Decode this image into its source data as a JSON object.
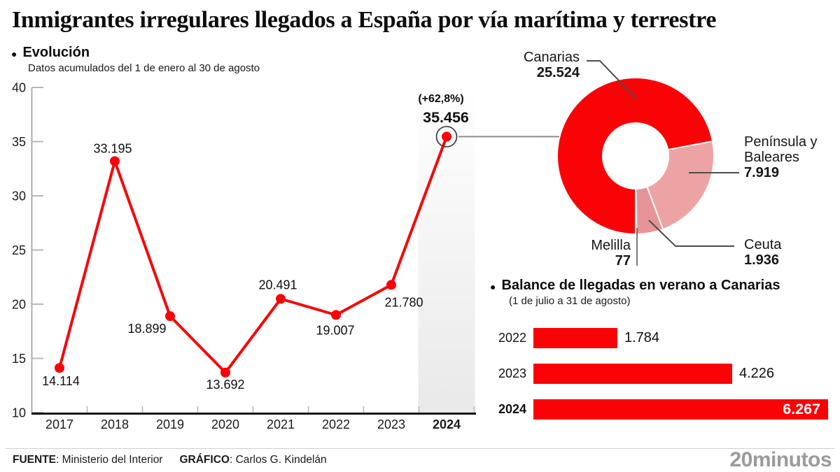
{
  "title": "Inmigrantes irregulares llegados a España por vía marítima y terrestre",
  "icons": {
    "bullet": "●"
  },
  "colors": {
    "red": "#fa0307",
    "pink_peninsula": "#eda3a4",
    "pink_ceuta": "#e69497",
    "pink_melilla": "#d8888a",
    "band_gray": "#e9e9e9",
    "logo_gray": "#9b9b9b",
    "leader_gray": "#4d4d4d"
  },
  "chart_data": [
    {
      "type": "line",
      "title": "Evolución",
      "subtitle": "Datos acumulados del 1 de enero al 30 de agosto",
      "x": [
        "2017",
        "2018",
        "2019",
        "2020",
        "2021",
        "2022",
        "2023",
        "2024"
      ],
      "values": [
        14114,
        33195,
        18899,
        13692,
        20491,
        19007,
        21780,
        35456
      ],
      "labels": [
        "14.114",
        "33.195",
        "18.899",
        "13.692",
        "20.491",
        "19.007",
        "21.780",
        "35.456"
      ],
      "highlight_year": "2024",
      "highlight_annotation": "(+62,8%)",
      "highlight_value_label": "35.456",
      "ylim": [
        10000,
        40000
      ],
      "yticks": [
        40,
        35,
        30,
        25,
        20,
        15,
        10
      ],
      "ytick_labels": [
        "40",
        "35",
        "30",
        "25",
        "20",
        "15",
        "10"
      ],
      "grid": false,
      "legend": "none"
    },
    {
      "type": "pie",
      "subtype": "donut",
      "total": 35456,
      "segments": [
        {
          "id": "canarias",
          "label": "Canarias",
          "value": 25524,
          "value_label": "25.524",
          "color": "#fa0307"
        },
        {
          "id": "peninsula-baleares",
          "label": "Península y Baleares",
          "value": 7919,
          "value_label": "7.919",
          "color": "#eda3a4"
        },
        {
          "id": "ceuta",
          "label": "Ceuta",
          "value": 1936,
          "value_label": "1.936",
          "color": "#e69497"
        },
        {
          "id": "melilla",
          "label": "Melilla",
          "value": 77,
          "value_label": "77",
          "color": "#d8888a"
        }
      ]
    },
    {
      "type": "bar",
      "orientation": "horizontal",
      "title": "Balance de llegadas en verano a Canarias",
      "subtitle": "(1 de julio a 31 de agosto)",
      "categories": [
        "2022",
        "2023",
        "2024"
      ],
      "values": [
        1784,
        4226,
        6267
      ],
      "labels": [
        "1.784",
        "4.226",
        "6.267"
      ],
      "highlight_category": "2024"
    }
  ],
  "footer": {
    "source_label": "FUENTE",
    "source_rest": ": Ministerio del Interior",
    "credit_label": "GRÁFICO",
    "credit_rest": ": Carlos G. Kindelán",
    "logo": "20minutos"
  }
}
